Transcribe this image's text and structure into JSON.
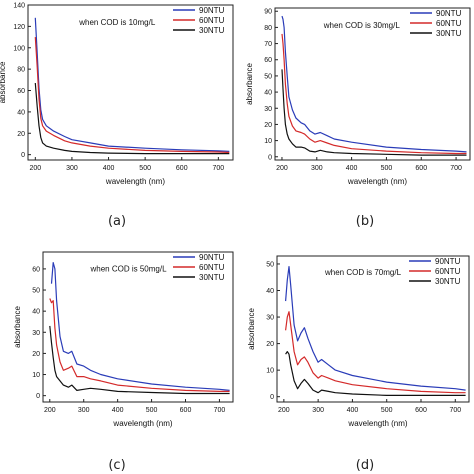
{
  "figure": {
    "subfigure_labels": [
      "(a)",
      "(b)",
      "(c)",
      "(d)"
    ]
  },
  "colors": {
    "90NTU": "#2a3cb8",
    "60NTU": "#d42a2a",
    "30NTU": "#111111"
  },
  "chart_data": [
    {
      "type": "line",
      "annotation": "when COD is 10mg/L",
      "xlabel": "wavelength (nm)",
      "ylabel": "absorbance",
      "xlim": [
        180,
        740
      ],
      "ylim": [
        -5,
        140
      ],
      "xticks": [
        200,
        300,
        400,
        500,
        600,
        700
      ],
      "yticks": [
        0,
        20,
        40,
        60,
        80,
        100,
        120,
        140
      ],
      "legend": "top-right",
      "series": [
        {
          "name": "90NTU",
          "x": [
            200,
            205,
            210,
            215,
            220,
            230,
            250,
            280,
            300,
            350,
            400,
            500,
            600,
            700,
            730
          ],
          "y": [
            128,
            95,
            62,
            42,
            33,
            27,
            22,
            17,
            14,
            11,
            8,
            6,
            4.5,
            3.5,
            3
          ]
        },
        {
          "name": "60NTU",
          "x": [
            200,
            205,
            210,
            215,
            220,
            230,
            250,
            280,
            300,
            350,
            400,
            500,
            600,
            700,
            730
          ],
          "y": [
            110,
            82,
            52,
            34,
            27,
            22,
            18,
            13,
            11,
            8,
            6,
            4,
            3,
            2.5,
            2
          ]
        },
        {
          "name": "30NTU",
          "x": [
            200,
            205,
            210,
            215,
            220,
            230,
            250,
            280,
            300,
            350,
            400,
            500,
            600,
            700,
            730
          ],
          "y": [
            67,
            45,
            27,
            16,
            11,
            8,
            6,
            4,
            3,
            2,
            1.5,
            1,
            1,
            1,
            1
          ]
        }
      ]
    },
    {
      "type": "line",
      "annotation": "when COD is 30mg/L",
      "xlabel": "wavelength (nm)",
      "ylabel": "absorbance",
      "xlim": [
        180,
        740
      ],
      "ylim": [
        -2,
        92
      ],
      "xticks": [
        200,
        300,
        400,
        500,
        600,
        700
      ],
      "yticks": [
        0,
        10,
        20,
        30,
        40,
        50,
        60,
        70,
        80,
        90
      ],
      "legend": "top-right",
      "series": [
        {
          "name": "90NTU",
          "x": [
            200,
            203,
            206,
            210,
            215,
            220,
            230,
            240,
            255,
            265,
            280,
            295,
            310,
            330,
            350,
            400,
            500,
            600,
            700,
            730
          ],
          "y": [
            87,
            85,
            80,
            65,
            50,
            37,
            29,
            24,
            21,
            20,
            16,
            14,
            15,
            13,
            11,
            9,
            6,
            4.5,
            3.5,
            3
          ]
        },
        {
          "name": "60NTU",
          "x": [
            200,
            203,
            206,
            210,
            215,
            220,
            230,
            240,
            255,
            265,
            280,
            295,
            310,
            330,
            350,
            400,
            500,
            600,
            700,
            730
          ],
          "y": [
            76,
            70,
            60,
            45,
            33,
            25,
            19,
            16,
            15,
            14,
            11,
            9,
            10,
            8.5,
            7,
            5,
            3.5,
            2.5,
            2,
            2
          ]
        },
        {
          "name": "30NTU",
          "x": [
            200,
            203,
            206,
            210,
            215,
            220,
            230,
            240,
            255,
            265,
            280,
            295,
            310,
            330,
            350,
            400,
            500,
            600,
            700,
            730
          ],
          "y": [
            54,
            42,
            30,
            20,
            14,
            11,
            8,
            6,
            6,
            5.5,
            3.5,
            3,
            4,
            3,
            2.5,
            2,
            1.5,
            1,
            1,
            1
          ]
        }
      ]
    },
    {
      "type": "line",
      "annotation": "when COD is 50mg/L",
      "xlabel": "wavelength (nm)",
      "ylabel": "absorbance",
      "xlim": [
        180,
        740
      ],
      "ylim": [
        -3,
        68
      ],
      "xticks": [
        200,
        300,
        400,
        500,
        600,
        700
      ],
      "yticks": [
        0,
        10,
        20,
        30,
        40,
        50,
        60
      ],
      "legend": "top-right",
      "series": [
        {
          "name": "90NTU",
          "x": [
            205,
            210,
            215,
            220,
            230,
            240,
            255,
            265,
            280,
            300,
            320,
            350,
            400,
            500,
            600,
            700,
            730
          ],
          "y": [
            53,
            63,
            60,
            45,
            28,
            21,
            20,
            21,
            15,
            14,
            12,
            10,
            8,
            5.5,
            4,
            3,
            2.5
          ]
        },
        {
          "name": "60NTU",
          "x": [
            200,
            205,
            210,
            215,
            220,
            230,
            240,
            255,
            265,
            280,
            300,
            320,
            350,
            400,
            500,
            600,
            700,
            730
          ],
          "y": [
            46,
            44,
            45,
            32,
            24,
            16,
            12,
            13,
            14,
            9,
            9,
            8,
            7,
            5,
            3.5,
            2.5,
            2,
            2
          ]
        },
        {
          "name": "30NTU",
          "x": [
            200,
            205,
            210,
            215,
            220,
            230,
            240,
            255,
            265,
            280,
            300,
            320,
            350,
            400,
            500,
            600,
            700,
            730
          ],
          "y": [
            33,
            25,
            18,
            12,
            9,
            7,
            5,
            4,
            5,
            2.5,
            3,
            3.5,
            3,
            2,
            1.5,
            1,
            1,
            1
          ]
        }
      ]
    },
    {
      "type": "line",
      "annotation": "when COD is 70mg/L",
      "xlabel": "wavelength (nm)",
      "ylabel": "absorbance",
      "xlim": [
        180,
        740
      ],
      "ylim": [
        -2,
        53
      ],
      "xticks": [
        200,
        300,
        400,
        500,
        600,
        700
      ],
      "yticks": [
        0,
        10,
        20,
        30,
        40,
        50
      ],
      "legend": "top-right",
      "series": [
        {
          "name": "90NTU",
          "x": [
            205,
            210,
            215,
            220,
            230,
            240,
            250,
            260,
            270,
            285,
            300,
            310,
            330,
            350,
            400,
            500,
            600,
            700,
            730
          ],
          "y": [
            36,
            44,
            49,
            42,
            27,
            21,
            24,
            26,
            22,
            17,
            13,
            14,
            12,
            10,
            8,
            5.5,
            4,
            3,
            2.5
          ]
        },
        {
          "name": "60NTU",
          "x": [
            205,
            210,
            215,
            220,
            230,
            240,
            250,
            260,
            270,
            285,
            300,
            310,
            330,
            350,
            400,
            500,
            600,
            700,
            730
          ],
          "y": [
            25,
            30,
            32,
            27,
            17,
            12,
            14,
            15,
            13,
            9,
            7,
            8,
            7,
            6,
            4.5,
            3,
            2,
            1.5,
            1.5
          ]
        },
        {
          "name": "30NTU",
          "x": [
            205,
            210,
            215,
            220,
            230,
            240,
            250,
            260,
            270,
            285,
            300,
            310,
            330,
            350,
            400,
            500,
            600,
            700,
            730
          ],
          "y": [
            16,
            17,
            16,
            12,
            6,
            3,
            5,
            6.5,
            5,
            2.5,
            1.5,
            2.5,
            2,
            1.5,
            1,
            0.5,
            0.5,
            0.5,
            0.5
          ]
        }
      ]
    }
  ]
}
